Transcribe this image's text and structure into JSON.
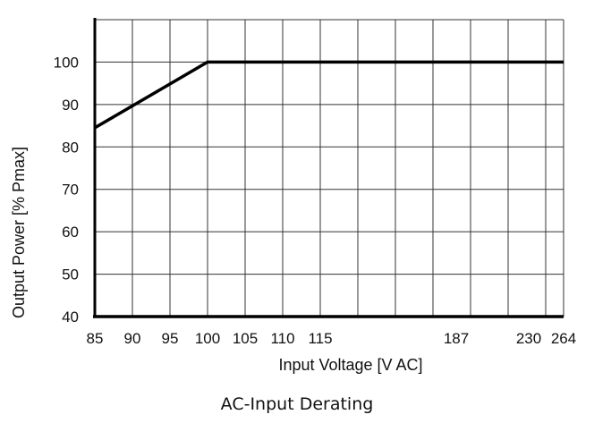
{
  "chart_data": {
    "type": "line",
    "title": "AC-Input Derating",
    "xlabel": "Input Voltage [V AC]",
    "ylabel": "Output Power [% Pmax]",
    "ylim": [
      40,
      110
    ],
    "grid": true,
    "x_ticks": [
      "85",
      "90",
      "95",
      "100",
      "105",
      "110",
      "115",
      "187",
      "230",
      "264"
    ],
    "y_ticks": [
      "40",
      "50",
      "60",
      "70",
      "80",
      "90",
      "100"
    ],
    "series": [
      {
        "x": [
          85,
          100,
          264
        ],
        "y": [
          84.5,
          100,
          100
        ]
      }
    ]
  }
}
